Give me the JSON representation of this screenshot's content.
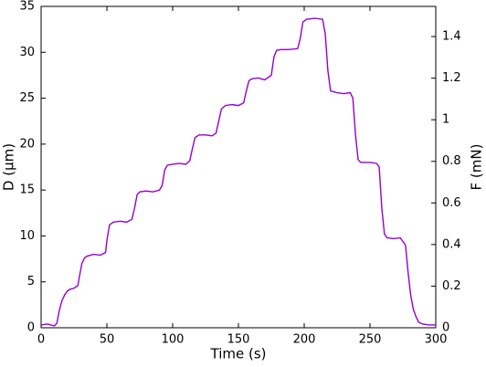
{
  "chart_data": {
    "type": "line",
    "x_label": "Time (s)",
    "y_label": "D (μm)",
    "y2_label": "F (mN)",
    "x": [
      0,
      5,
      10,
      12,
      14,
      16,
      18,
      20,
      22,
      25,
      28,
      29,
      31,
      33,
      35,
      40,
      45,
      49,
      50,
      52,
      55,
      60,
      65,
      69,
      71,
      73,
      75,
      80,
      85,
      90,
      92,
      94,
      96,
      100,
      105,
      110,
      113,
      115,
      117,
      120,
      125,
      130,
      133,
      135,
      137,
      140,
      145,
      150,
      154,
      156,
      158,
      160,
      165,
      170,
      175,
      177,
      179,
      182,
      188,
      195,
      197,
      199,
      202,
      208,
      214,
      216,
      218,
      220,
      225,
      230,
      235,
      237,
      239,
      241,
      243,
      250,
      255,
      257,
      259,
      261,
      263,
      268,
      273,
      277,
      279,
      281,
      283,
      285,
      287,
      290,
      295,
      300
    ],
    "series": [
      {
        "color": "#9400d3",
        "values": [
          0.3,
          0.4,
          0.2,
          0.5,
          2,
          3,
          3.6,
          4,
          4.2,
          4.3,
          4.6,
          5.5,
          7,
          7.6,
          7.8,
          8,
          7.9,
          8.2,
          9.5,
          11.2,
          11.5,
          11.6,
          11.5,
          11.8,
          13,
          14.5,
          14.8,
          14.9,
          14.8,
          15,
          15.5,
          17.2,
          17.7,
          17.8,
          17.9,
          17.8,
          18.2,
          19.5,
          20.7,
          21,
          21,
          20.9,
          21.2,
          22.5,
          23.8,
          24.2,
          24.3,
          24.2,
          24.5,
          25.8,
          26.9,
          27.1,
          27.2,
          27,
          27.5,
          29.5,
          30.2,
          30.3,
          30.3,
          30.4,
          31.5,
          33.3,
          33.6,
          33.7,
          33.6,
          32,
          28,
          25.8,
          25.6,
          25.5,
          25.6,
          25,
          21,
          18.3,
          18,
          18,
          17.9,
          17.5,
          13,
          10.2,
          9.8,
          9.7,
          9.8,
          9,
          6,
          3.5,
          2,
          1.2,
          0.6,
          0.4,
          0.3,
          0.3
        ]
      }
    ],
    "xlim": [
      0,
      300
    ],
    "xticks": [
      0,
      50,
      100,
      150,
      200,
      250,
      300
    ],
    "ylim": [
      0,
      35
    ],
    "yticks": [
      0,
      5,
      10,
      15,
      20,
      25,
      30,
      35
    ],
    "y2lim": [
      0,
      1.545
    ],
    "y2ticks": [
      0,
      0.2,
      0.4,
      0.6,
      0.8,
      1,
      1.2,
      1.4
    ]
  }
}
